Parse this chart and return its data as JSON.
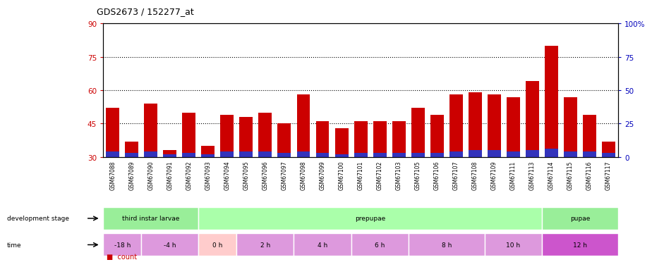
{
  "title": "GDS2673 / 152277_at",
  "samples": [
    "GSM67088",
    "GSM67089",
    "GSM67090",
    "GSM67091",
    "GSM67092",
    "GSM67093",
    "GSM67094",
    "GSM67095",
    "GSM67096",
    "GSM67097",
    "GSM67098",
    "GSM67099",
    "GSM67100",
    "GSM67101",
    "GSM67102",
    "GSM67103",
    "GSM67105",
    "GSM67106",
    "GSM67107",
    "GSM67108",
    "GSM67109",
    "GSM67111",
    "GSM67113",
    "GSM67114",
    "GSM67115",
    "GSM67116",
    "GSM67117"
  ],
  "count_values": [
    52,
    37,
    54,
    33,
    50,
    35,
    49,
    48,
    50,
    45,
    58,
    46,
    43,
    46,
    46,
    46,
    52,
    49,
    58,
    59,
    58,
    57,
    64,
    80,
    57,
    49,
    37
  ],
  "percentile_values": [
    4,
    3,
    4,
    2,
    3,
    2,
    4,
    4,
    4,
    3,
    4,
    3,
    2,
    3,
    3,
    3,
    3,
    3,
    4,
    5,
    5,
    4,
    5,
    6,
    4,
    4,
    3
  ],
  "ylim_left": [
    30,
    90
  ],
  "ylim_right": [
    0,
    100
  ],
  "yticks_left": [
    30,
    45,
    60,
    75,
    90
  ],
  "yticks_right": [
    0,
    25,
    50,
    75,
    100
  ],
  "bar_color_red": "#CC0000",
  "bar_color_blue": "#3333BB",
  "plot_bg": "#FFFFFF",
  "fig_bg": "#FFFFFF",
  "xticklabel_bg": "#C8C8C8",
  "left_axis_color": "#CC0000",
  "right_axis_color": "#0000BB",
  "dotted_yticks": [
    45,
    60,
    75
  ],
  "dev_stage_groups": [
    {
      "label": "third instar larvae",
      "start": 0,
      "end": 5,
      "color": "#99EE99"
    },
    {
      "label": "prepupae",
      "start": 5,
      "end": 23,
      "color": "#AAFFAA"
    },
    {
      "label": "pupae",
      "start": 23,
      "end": 27,
      "color": "#99EE99"
    }
  ],
  "time_groups": [
    {
      "label": "-18 h",
      "start": 0,
      "end": 2,
      "color": "#DD99DD"
    },
    {
      "label": "-4 h",
      "start": 2,
      "end": 5,
      "color": "#DD99DD"
    },
    {
      "label": "0 h",
      "start": 5,
      "end": 7,
      "color": "#FFCCCC"
    },
    {
      "label": "2 h",
      "start": 7,
      "end": 10,
      "color": "#DD99DD"
    },
    {
      "label": "4 h",
      "start": 10,
      "end": 13,
      "color": "#DD99DD"
    },
    {
      "label": "6 h",
      "start": 13,
      "end": 16,
      "color": "#DD99DD"
    },
    {
      "label": "8 h",
      "start": 16,
      "end": 20,
      "color": "#DD99DD"
    },
    {
      "label": "10 h",
      "start": 20,
      "end": 23,
      "color": "#DD99DD"
    },
    {
      "label": "12 h",
      "start": 23,
      "end": 27,
      "color": "#CC55CC"
    }
  ]
}
